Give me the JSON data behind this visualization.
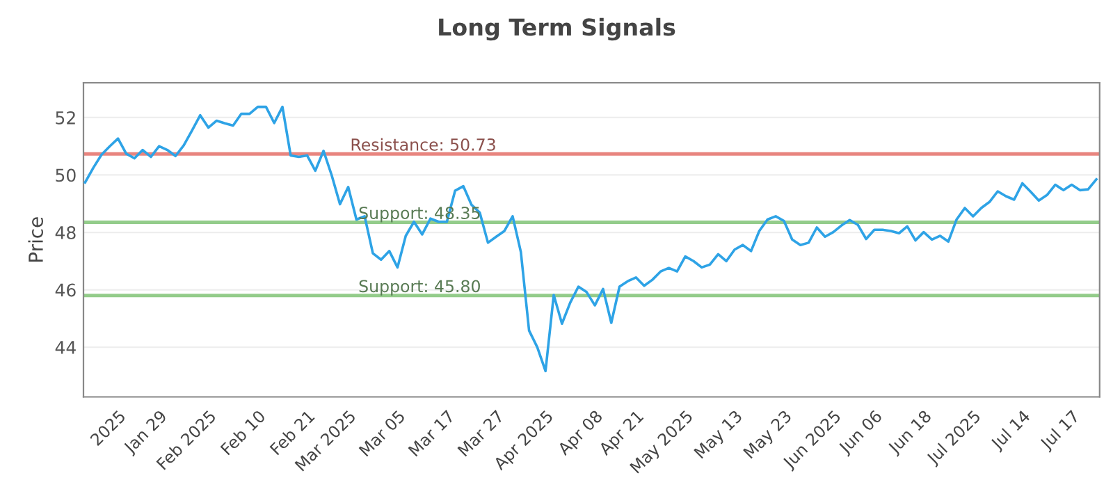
{
  "chart_data": {
    "type": "line",
    "title": "Long Term Signals",
    "ylabel": "Price",
    "categories": [
      null,
      null,
      null,
      null,
      "2025",
      null,
      null,
      null,
      null,
      "Jan 29",
      null,
      null,
      null,
      null,
      null,
      "Feb 2025",
      null,
      null,
      null,
      null,
      null,
      "Feb 10",
      null,
      null,
      null,
      null,
      null,
      "Feb 21",
      null,
      null,
      null,
      null,
      "Mar 2025",
      null,
      null,
      null,
      null,
      null,
      "Mar 05",
      null,
      null,
      null,
      null,
      null,
      "Mar 17",
      null,
      null,
      null,
      null,
      null,
      "Mar 27",
      null,
      null,
      null,
      null,
      null,
      "Apr 2025",
      null,
      null,
      null,
      null,
      null,
      "Apr 08",
      null,
      null,
      null,
      null,
      "Apr 21",
      null,
      null,
      null,
      null,
      null,
      "May 2025",
      null,
      null,
      null,
      null,
      null,
      "May 13",
      null,
      null,
      null,
      null,
      null,
      "May 23",
      null,
      null,
      null,
      null,
      null,
      "Jun 2025",
      null,
      null,
      null,
      null,
      "Jun 06",
      null,
      null,
      null,
      null,
      null,
      "Jun 18",
      null,
      null,
      null,
      null,
      null,
      "Jul 2025",
      null,
      null,
      null,
      null,
      null,
      "Jul 14",
      null,
      null,
      null,
      null,
      null,
      "Jul 17",
      null,
      null,
      null
    ],
    "series": [
      {
        "color": "#2ea3e6",
        "values": [
          49.74,
          50.25,
          50.71,
          51.0,
          51.27,
          50.74,
          50.58,
          50.87,
          50.63,
          51.0,
          50.87,
          50.66,
          51.03,
          51.55,
          52.08,
          51.65,
          51.89,
          51.8,
          51.72,
          52.13,
          52.13,
          52.37,
          52.37,
          51.81,
          52.37,
          50.68,
          50.63,
          50.68,
          50.15,
          50.84,
          49.98,
          48.98,
          49.58,
          48.45,
          48.56,
          47.27,
          47.05,
          47.35,
          46.78,
          47.88,
          48.37,
          47.93,
          48.48,
          48.37,
          48.37,
          49.45,
          49.61,
          48.96,
          48.69,
          47.64,
          47.85,
          48.05,
          48.56,
          47.32,
          44.58,
          44.0,
          43.17,
          45.82,
          44.82,
          45.55,
          46.11,
          45.92,
          45.46,
          46.03,
          44.85,
          46.11,
          46.3,
          46.43,
          46.14,
          46.35,
          46.64,
          46.76,
          46.64,
          47.16,
          47.0,
          46.78,
          46.88,
          47.24,
          47.0,
          47.4,
          47.56,
          47.35,
          48.05,
          48.45,
          48.56,
          48.4,
          47.75,
          47.56,
          47.64,
          48.17,
          47.85,
          48.01,
          48.24,
          48.43,
          48.26,
          47.77,
          48.09,
          48.09,
          48.05,
          47.97,
          48.21,
          47.72,
          48.01,
          47.75,
          47.88,
          47.68,
          48.45,
          48.85,
          48.56,
          48.85,
          49.06,
          49.43,
          49.26,
          49.14,
          49.71,
          49.42,
          49.11,
          49.3,
          49.66,
          49.47,
          49.66,
          49.47,
          49.5,
          49.85
        ]
      }
    ],
    "ylim": [
      42.27,
      53.21
    ],
    "yticks": [
      44,
      46,
      48,
      50,
      52
    ],
    "grid": "y",
    "marker": "none",
    "line_style": "solid",
    "legend": false,
    "ref_lines": [
      {
        "axis": "y",
        "value": 50.73,
        "label": "Resistance: 50.73",
        "color": "#e8857f"
      },
      {
        "axis": "y",
        "value": 48.35,
        "label": "Support: 48.35",
        "color": "#93cc8a"
      },
      {
        "axis": "y",
        "value": 45.8,
        "label": "Support: 45.80",
        "color": "#93cc8a"
      }
    ]
  }
}
